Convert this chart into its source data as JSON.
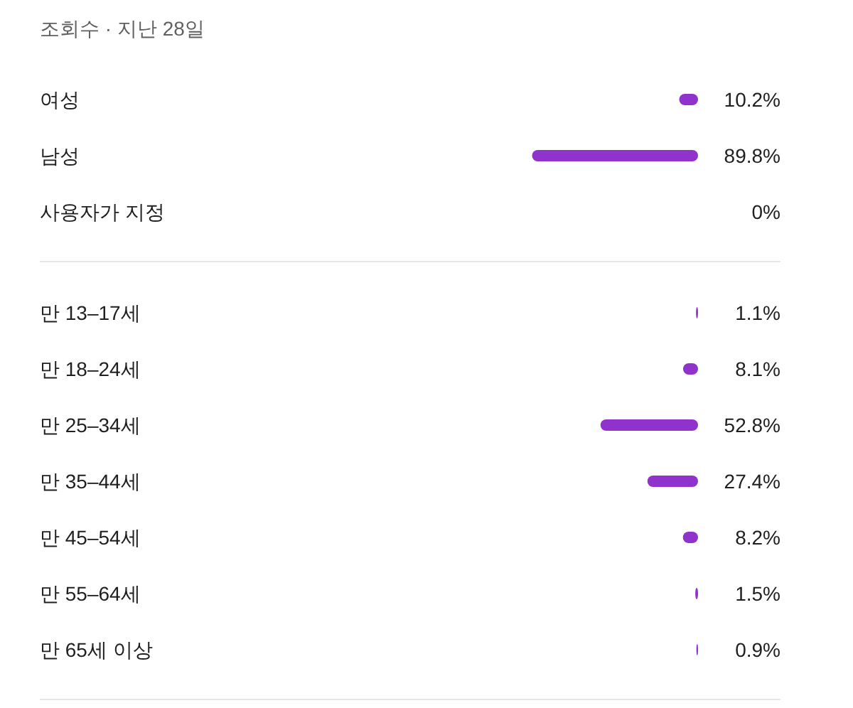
{
  "chart_data": [
    {
      "type": "bar",
      "orientation": "horizontal",
      "title": "조회수 · 지난 28일",
      "categories": [
        "여성",
        "남성",
        "사용자가 지정"
      ],
      "color": "#8f33cc",
      "values": [
        10.2,
        89.8,
        0
      ],
      "value_labels": [
        "10.2%",
        "89.8%",
        "0%"
      ]
    },
    {
      "type": "bar",
      "orientation": "horizontal",
      "categories": [
        "만 13–17세",
        "만 18–24세",
        "만 25–34세",
        "만 35–44세",
        "만 45–54세",
        "만 55–64세",
        "만 65세 이상"
      ],
      "color": "#8f33cc",
      "values": [
        1.1,
        8.1,
        52.8,
        27.4,
        8.2,
        1.5,
        0.9
      ],
      "value_labels": [
        "1.1%",
        "8.1%",
        "52.8%",
        "27.4%",
        "8.2%",
        "1.5%",
        "0.9%"
      ]
    }
  ]
}
